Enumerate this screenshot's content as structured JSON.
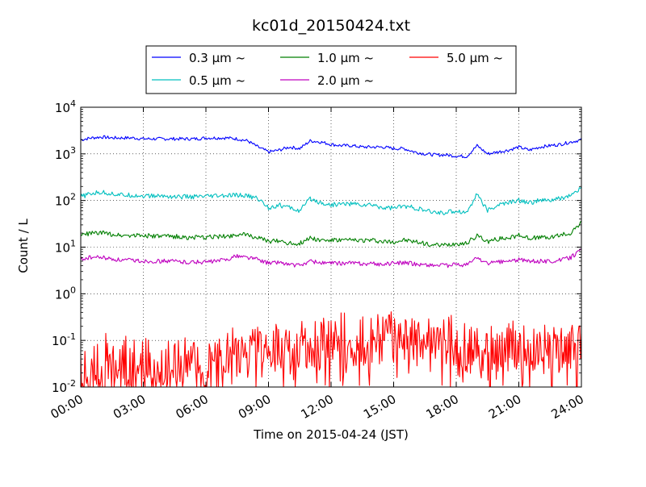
{
  "chart_data": {
    "type": "line",
    "title": "kc01d_20150424.txt",
    "xlabel": "Time on 2015-04-24 (JST)",
    "ylabel": "Count / L",
    "y_scale": "log",
    "ylim": [
      0.01,
      10000
    ],
    "xlim": [
      "00:00",
      "24:00"
    ],
    "x_ticks": [
      "00:00",
      "03:00",
      "06:00",
      "09:00",
      "12:00",
      "15:00",
      "18:00",
      "21:00",
      "24:00"
    ],
    "y_ticks": [
      {
        "base": "10",
        "exp": "-2"
      },
      {
        "base": "10",
        "exp": "-1"
      },
      {
        "base": "10",
        "exp": "0"
      },
      {
        "base": "10",
        "exp": "1"
      },
      {
        "base": "10",
        "exp": "2"
      },
      {
        "base": "10",
        "exp": "3"
      },
      {
        "base": "10",
        "exp": "4"
      }
    ],
    "grid": true,
    "legend_position": "top",
    "x_hours": [
      0,
      0.5,
      1,
      1.5,
      2,
      2.5,
      3,
      3.5,
      4,
      4.5,
      5,
      5.5,
      6,
      6.5,
      7,
      7.5,
      8,
      8.5,
      9,
      9.5,
      10,
      10.5,
      11,
      11.5,
      12,
      12.5,
      13,
      13.5,
      14,
      14.5,
      15,
      15.5,
      16,
      16.5,
      17,
      17.5,
      18,
      18.5,
      19,
      19.5,
      20,
      20.5,
      21,
      21.5,
      22,
      22.5,
      23,
      23.5,
      24
    ],
    "series": [
      {
        "name": "0.3 μm ~",
        "color": "#0000ff",
        "values": [
          2000,
          2200,
          2300,
          2200,
          2200,
          2200,
          2100,
          2100,
          2100,
          2100,
          2100,
          2100,
          2200,
          2200,
          2200,
          2100,
          1900,
          1400,
          1100,
          1200,
          1400,
          1300,
          1900,
          1800,
          1600,
          1500,
          1500,
          1400,
          1400,
          1400,
          1300,
          1300,
          1100,
          1000,
          950,
          950,
          900,
          880,
          1500,
          1000,
          1100,
          1200,
          1400,
          1200,
          1400,
          1500,
          1600,
          1800,
          2000
        ]
      },
      {
        "name": "0.5 μm ~",
        "color": "#00bfbf",
        "values": [
          120,
          140,
          150,
          140,
          130,
          130,
          125,
          125,
          125,
          120,
          120,
          120,
          120,
          125,
          125,
          130,
          125,
          110,
          70,
          80,
          70,
          60,
          110,
          90,
          80,
          85,
          85,
          80,
          80,
          70,
          70,
          75,
          70,
          60,
          55,
          55,
          60,
          55,
          140,
          60,
          80,
          90,
          100,
          90,
          100,
          100,
          110,
          130,
          180
        ]
      },
      {
        "name": "1.0 μm ~",
        "color": "#007f00",
        "values": [
          18,
          20,
          20,
          19,
          18,
          18,
          18,
          17,
          17,
          17,
          16,
          16,
          16,
          17,
          17,
          19,
          18,
          16,
          13,
          14,
          12,
          12,
          16,
          14,
          14,
          14,
          14,
          14,
          14,
          13,
          13,
          14,
          13,
          12,
          11,
          11,
          12,
          12,
          18,
          13,
          15,
          16,
          18,
          16,
          16,
          16,
          18,
          20,
          35
        ]
      },
      {
        "name": "2.0 μm ~",
        "color": "#bf00bf",
        "values": [
          5.5,
          6,
          6,
          5.5,
          5.2,
          5.2,
          5,
          5,
          5,
          5,
          4.8,
          4.8,
          4.8,
          5,
          5.5,
          6.5,
          6,
          5.5,
          4.5,
          4.8,
          4.2,
          4,
          5,
          4.6,
          4.5,
          4.5,
          4.6,
          4.4,
          4.4,
          4.3,
          4.5,
          4.6,
          4.4,
          4.2,
          4.1,
          4,
          4.2,
          4.2,
          6,
          4.4,
          4.8,
          5,
          5.4,
          5,
          5,
          5,
          5.3,
          6,
          9
        ]
      },
      {
        "name": "5.0 μm ~",
        "color": "#ff0000",
        "values": [
          0.04,
          0.02,
          0.05,
          0.03,
          0.04,
          0.03,
          0.05,
          0.02,
          0.04,
          0.03,
          0.05,
          0.03,
          0.04,
          0.03,
          0.05,
          0.06,
          0.07,
          0.08,
          0.06,
          0.07,
          0.06,
          0.08,
          0.09,
          0.1,
          0.11,
          0.12,
          0.1,
          0.1,
          0.12,
          0.11,
          0.13,
          0.12,
          0.15,
          0.14,
          0.13,
          0.11,
          0.09,
          0.07,
          0.06,
          0.07,
          0.07,
          0.07,
          0.08,
          0.07,
          0.07,
          0.06,
          0.07,
          0.07,
          0.06
        ]
      }
    ]
  }
}
